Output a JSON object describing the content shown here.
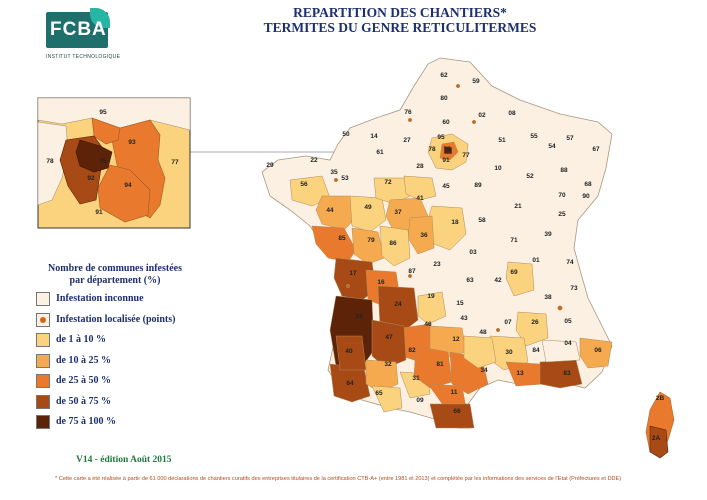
{
  "logo": {
    "text": "FCBA",
    "subtitle": "INSTITUT  TECHNOLOGIQUE"
  },
  "title": {
    "line1": "REPARTITION DES CHANTIERS*",
    "line2": "TERMITES DU GENRE RETICULITERMES"
  },
  "legend": {
    "title_line1": "Nombre de communes infestées",
    "title_line2": "par département  (%)",
    "items": [
      {
        "label": "Infestation inconnue",
        "color": "#fbf0e2",
        "dot": false
      },
      {
        "label": "Infestation localisée (points)",
        "color": "#fbf0e2",
        "dot": true
      },
      {
        "label": "de 1 à 10 %",
        "color": "#fbd27d",
        "dot": false
      },
      {
        "label": "de 10 à 25 %",
        "color": "#f5aa4f",
        "dot": false
      },
      {
        "label": "de 25 à 50 %",
        "color": "#e97a2d",
        "dot": false
      },
      {
        "label": "de 50 à 75 %",
        "color": "#a84a16",
        "dot": false
      },
      {
        "label": "de 75 à 100 %",
        "color": "#5c2309",
        "dot": false
      }
    ]
  },
  "version": "V14  -  édition Août 2015",
  "footnote": "* Cette carte a été réalisée à partir de 61 000 déclarations de chantiers curatifs des entreprises titulaires de la certification CTB-A+ (entre 1981 et 2013) et complétée par les informations des services de l'Etat (Préfectures et DDE)",
  "inset_labels": [
    "95",
    "78",
    "93",
    "77",
    "75",
    "92",
    "94",
    "91"
  ],
  "department_labels": [
    "62",
    "59",
    "80",
    "76",
    "02",
    "08",
    "60",
    "95",
    "14",
    "50",
    "27",
    "57",
    "55",
    "51",
    "54",
    "67",
    "29",
    "22",
    "35",
    "61",
    "78",
    "75",
    "91",
    "77",
    "10",
    "52",
    "88",
    "68",
    "56",
    "53",
    "72",
    "28",
    "45",
    "89",
    "21",
    "70",
    "90",
    "25",
    "44",
    "49",
    "41",
    "37",
    "18",
    "58",
    "39",
    "85",
    "79",
    "86",
    "36",
    "71",
    "01",
    "74",
    "03",
    "23",
    "87",
    "63",
    "42",
    "69",
    "73",
    "17",
    "16",
    "19",
    "38",
    "15",
    "43",
    "07",
    "26",
    "05",
    "24",
    "33",
    "46",
    "47",
    "48",
    "84",
    "06",
    "04",
    "12",
    "82",
    "30",
    "40",
    "81",
    "32",
    "13",
    "83",
    "34",
    "31",
    "64",
    "65",
    "09",
    "11",
    "66",
    "2A",
    "2B"
  ]
}
